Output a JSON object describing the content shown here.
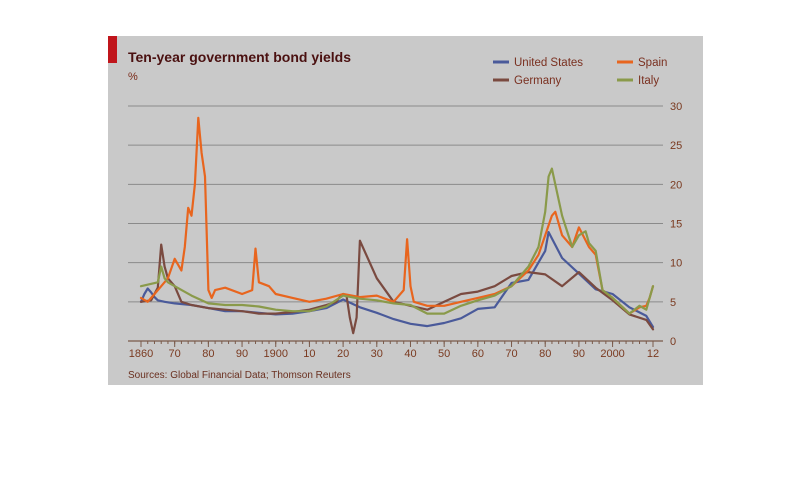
{
  "colors": {
    "background": "#c9c9c9",
    "accent_bar": "#c0151b",
    "united_states": "#4a5a9a",
    "germany": "#7a4a40",
    "spain": "#e8651e",
    "italy": "#8a9a4a"
  },
  "chart_data": {
    "type": "line",
    "title": "Ten-year government bond yields",
    "unit_label": "%",
    "source": "Sources: Global Financial Data; Thomson Reuters",
    "xlim": [
      1860,
      2012
    ],
    "ylim": [
      0,
      30
    ],
    "y_ticks": [
      "0",
      "5",
      "10",
      "15",
      "20",
      "25",
      "30"
    ],
    "x_ticks": [
      {
        "year": 1860,
        "label": "1860"
      },
      {
        "year": 1870,
        "label": "70"
      },
      {
        "year": 1880,
        "label": "80"
      },
      {
        "year": 1890,
        "label": "90"
      },
      {
        "year": 1900,
        "label": "1900"
      },
      {
        "year": 1910,
        "label": "10"
      },
      {
        "year": 1920,
        "label": "20"
      },
      {
        "year": 1930,
        "label": "30"
      },
      {
        "year": 1940,
        "label": "40"
      },
      {
        "year": 1950,
        "label": "50"
      },
      {
        "year": 1960,
        "label": "60"
      },
      {
        "year": 1970,
        "label": "70"
      },
      {
        "year": 1980,
        "label": "80"
      },
      {
        "year": 1990,
        "label": "90"
      },
      {
        "year": 2000,
        "label": "2000"
      },
      {
        "year": 2012,
        "label": "12"
      }
    ],
    "grid": "horizontal",
    "legend_position": "top-right",
    "series": [
      {
        "name": "United States",
        "color": "#4a5a9a",
        "x": [
          1860,
          1861,
          1862,
          1863,
          1864,
          1865,
          1867,
          1870,
          1875,
          1880,
          1885,
          1890,
          1895,
          1900,
          1905,
          1910,
          1915,
          1920,
          1925,
          1930,
          1935,
          1940,
          1945,
          1950,
          1955,
          1960,
          1965,
          1970,
          1975,
          1980,
          1981,
          1985,
          1990,
          1995,
          2000,
          2005,
          2010,
          2012
        ],
        "y": [
          5.0,
          6.0,
          6.7,
          6.2,
          5.6,
          5.2,
          5.0,
          4.8,
          4.6,
          4.2,
          3.8,
          3.8,
          3.6,
          3.4,
          3.5,
          3.8,
          4.2,
          5.3,
          4.3,
          3.6,
          2.8,
          2.2,
          1.9,
          2.3,
          2.9,
          4.1,
          4.3,
          7.4,
          7.8,
          11.5,
          13.9,
          10.6,
          8.6,
          6.6,
          6.0,
          4.3,
          3.2,
          1.8
        ]
      },
      {
        "name": "Germany",
        "color": "#7a4a40",
        "x": [
          1860,
          1863,
          1865,
          1866,
          1867,
          1868,
          1870,
          1872,
          1875,
          1880,
          1885,
          1890,
          1895,
          1900,
          1905,
          1910,
          1915,
          1918,
          1919,
          1920,
          1921,
          1922,
          1923,
          1924,
          1925,
          1930,
          1935,
          1940,
          1945,
          1950,
          1955,
          1960,
          1965,
          1970,
          1975,
          1980,
          1985,
          1990,
          1995,
          2000,
          2005,
          2010,
          2012
        ],
        "y": [
          5.0,
          5.2,
          6.8,
          12.3,
          9.5,
          8.0,
          7.0,
          5.0,
          4.6,
          4.2,
          4.0,
          3.8,
          3.5,
          3.5,
          3.7,
          4.0,
          4.6,
          5.0,
          5.6,
          6.0,
          5.8,
          3.0,
          1.0,
          3.0,
          12.8,
          8.0,
          5.0,
          4.5,
          4.0,
          5.0,
          6.0,
          6.3,
          7.0,
          8.3,
          8.8,
          8.5,
          7.0,
          8.8,
          6.8,
          5.2,
          3.4,
          2.7,
          1.5
        ]
      },
      {
        "name": "Spain",
        "color": "#e8651e",
        "x": [
          1860,
          1862,
          1864,
          1866,
          1868,
          1870,
          1872,
          1873,
          1874,
          1875,
          1876,
          1877,
          1878,
          1879,
          1880,
          1881,
          1882,
          1885,
          1890,
          1893,
          1894,
          1895,
          1898,
          1900,
          1905,
          1910,
          1915,
          1920,
          1925,
          1930,
          1935,
          1938,
          1939,
          1940,
          1941,
          1945,
          1950,
          1955,
          1960,
          1965,
          1970,
          1975,
          1978,
          1980,
          1982,
          1983,
          1985,
          1988,
          1990,
          1993,
          1995,
          1997,
          2000,
          2005,
          2008,
          2010,
          2011,
          2012
        ],
        "y": [
          5.5,
          5.0,
          6.0,
          7.0,
          8.0,
          10.5,
          9.0,
          12.0,
          17.0,
          16.0,
          20.0,
          28.5,
          24.0,
          21.0,
          6.5,
          5.5,
          6.5,
          6.8,
          6.0,
          6.5,
          11.8,
          7.5,
          7.0,
          6.0,
          5.5,
          5.0,
          5.4,
          6.0,
          5.6,
          5.8,
          5.0,
          6.5,
          13.0,
          7.0,
          5.0,
          4.5,
          4.5,
          5.0,
          5.5,
          6.0,
          7.0,
          9.0,
          11.0,
          13.5,
          16.0,
          16.5,
          13.5,
          12.0,
          14.5,
          12.0,
          11.0,
          6.5,
          5.5,
          3.5,
          4.3,
          4.5,
          5.5,
          7.0
        ]
      },
      {
        "name": "Italy",
        "color": "#8a9a4a",
        "x": [
          1860,
          1865,
          1866,
          1867,
          1868,
          1870,
          1875,
          1880,
          1885,
          1890,
          1895,
          1900,
          1905,
          1910,
          1915,
          1920,
          1925,
          1930,
          1935,
          1940,
          1945,
          1950,
          1955,
          1960,
          1965,
          1970,
          1975,
          1978,
          1980,
          1981,
          1982,
          1985,
          1988,
          1990,
          1992,
          1993,
          1995,
          1997,
          2000,
          2005,
          2008,
          2010,
          2011,
          2012
        ],
        "y": [
          7.0,
          7.5,
          9.5,
          8.0,
          7.5,
          7.0,
          5.8,
          4.8,
          4.6,
          4.6,
          4.4,
          4.0,
          3.8,
          3.8,
          4.4,
          5.8,
          5.4,
          5.2,
          4.8,
          4.6,
          3.5,
          3.5,
          4.5,
          5.2,
          5.8,
          7.0,
          9.5,
          12.0,
          16.5,
          21.0,
          22.0,
          16.0,
          12.0,
          13.5,
          14.0,
          12.5,
          11.5,
          6.5,
          5.5,
          3.5,
          4.5,
          4.0,
          5.5,
          7.0
        ]
      }
    ]
  }
}
